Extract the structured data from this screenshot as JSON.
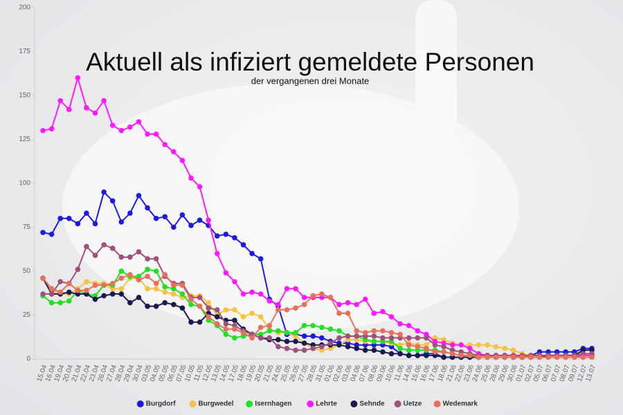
{
  "chart_data": {
    "type": "line",
    "title": "Aktuell als infiziert gemeldete Personen",
    "subtitle": "der vergangenen drei Monate",
    "categories": [
      "15.04",
      "16.04",
      "19.04",
      "20.04",
      "21.04",
      "22.04",
      "23.04",
      "26.04",
      "27.04",
      "28.04",
      "29.04",
      "30.04",
      "03.05",
      "04.05",
      "05.05",
      "06.05",
      "07.05",
      "10.05",
      "11.05",
      "12.05",
      "13.05",
      "14.05",
      "17.05",
      "18.05",
      "19.05",
      "20.05",
      "21.05",
      "24.05",
      "25.05",
      "26.05",
      "27.05",
      "28.05",
      "31.05",
      "01.06",
      "02.06",
      "03.06",
      "04.06",
      "07.06",
      "08.06",
      "09.06",
      "10.06",
      "11.06",
      "14.06",
      "15.06",
      "16.06",
      "17.06",
      "18.06",
      "21.06",
      "22.06",
      "23.06",
      "24.06",
      "25.06",
      "28.06",
      "29.06",
      "30.06",
      "01.07",
      "02.07",
      "05.07",
      "06.07",
      "07.07",
      "08.07",
      "09.07",
      "12.07",
      "13.07"
    ],
    "ylim": [
      0,
      200
    ],
    "yticks": [
      0,
      25,
      50,
      75,
      100,
      125,
      150,
      175,
      200
    ],
    "grid": false,
    "series": [
      {
        "name": "Burgdorf",
        "color": "#1c1ce0",
        "values": [
          72,
          71,
          80,
          80,
          77,
          83,
          77,
          95,
          90,
          78,
          83,
          93,
          86,
          80,
          81,
          75,
          82,
          76,
          79,
          76,
          70,
          71,
          69,
          65,
          60,
          57,
          34,
          30,
          14,
          14,
          13,
          13,
          12,
          10,
          9,
          9,
          8,
          8,
          8,
          8,
          7,
          3,
          2,
          2,
          3,
          3,
          1,
          1,
          1,
          1,
          1,
          1,
          1,
          1,
          1,
          1,
          2,
          4,
          4,
          4,
          4,
          4,
          6,
          6
        ]
      },
      {
        "name": "Burgwedel",
        "color": "#f5c242",
        "values": [
          46,
          39,
          37,
          37,
          40,
          44,
          43,
          43,
          40,
          40,
          46,
          46,
          40,
          40,
          38,
          37,
          35,
          36,
          36,
          32,
          25,
          28,
          28,
          24,
          26,
          24,
          17,
          15,
          15,
          13,
          9,
          6,
          5,
          6,
          8,
          11,
          11,
          10,
          10,
          10,
          9,
          8,
          9,
          8,
          8,
          12,
          11,
          9,
          8,
          8,
          8,
          8,
          7,
          6,
          5,
          3,
          2,
          2,
          2,
          2,
          2,
          2,
          1,
          1
        ]
      },
      {
        "name": "Isernhagen",
        "color": "#22e022",
        "values": [
          36,
          32,
          32,
          33,
          39,
          37,
          36,
          42,
          42,
          50,
          47,
          47,
          51,
          50,
          41,
          40,
          37,
          31,
          30,
          22,
          19,
          14,
          12,
          13,
          14,
          14,
          16,
          16,
          15,
          15,
          19,
          19,
          18,
          17,
          16,
          13,
          13,
          11,
          10,
          10,
          10,
          6,
          5,
          5,
          5,
          5,
          4,
          3,
          2,
          2,
          2,
          2,
          1,
          1,
          1,
          1,
          2,
          2,
          2,
          2,
          2,
          2,
          2,
          2
        ]
      },
      {
        "name": "Lehrte",
        "color": "#ff1aff",
        "values": [
          130,
          131,
          147,
          142,
          160,
          143,
          140,
          147,
          133,
          130,
          132,
          135,
          128,
          128,
          122,
          118,
          113,
          103,
          98,
          79,
          60,
          49,
          44,
          37,
          38,
          37,
          33,
          31,
          40,
          40,
          35,
          35,
          35,
          35,
          31,
          32,
          31,
          34,
          26,
          27,
          24,
          20,
          19,
          16,
          14,
          10,
          9,
          8,
          8,
          6,
          3,
          2,
          2,
          2,
          2,
          1,
          1,
          1,
          1,
          1,
          1,
          1,
          2,
          2
        ]
      },
      {
        "name": "Sehnde",
        "color": "#1a1a50",
        "values": [
          46,
          37,
          37,
          38,
          37,
          37,
          34,
          36,
          37,
          37,
          32,
          35,
          30,
          30,
          32,
          31,
          29,
          21,
          21,
          26,
          24,
          22,
          22,
          17,
          14,
          12,
          11,
          11,
          10,
          10,
          9,
          8,
          8,
          8,
          8,
          7,
          6,
          5,
          5,
          4,
          3,
          3,
          2,
          2,
          2,
          2,
          1,
          1,
          1,
          1,
          1,
          1,
          1,
          1,
          1,
          1,
          1,
          1,
          2,
          2,
          2,
          2,
          5,
          5
        ]
      },
      {
        "name": "Uetze",
        "color": "#a0507a",
        "values": [
          37,
          37,
          44,
          43,
          51,
          64,
          59,
          65,
          63,
          58,
          58,
          61,
          57,
          57,
          47,
          43,
          43,
          35,
          35,
          29,
          28,
          20,
          19,
          16,
          14,
          12,
          12,
          7,
          6,
          5,
          5,
          6,
          7,
          9,
          12,
          13,
          13,
          13,
          13,
          12,
          12,
          12,
          12,
          12,
          12,
          8,
          7,
          5,
          4,
          3,
          2,
          2,
          2,
          2,
          2,
          2,
          2,
          2,
          2,
          2,
          2,
          2,
          3,
          3
        ]
      },
      {
        "name": "Wedemark",
        "color": "#e8705a",
        "values": [
          46,
          40,
          38,
          43,
          39,
          39,
          42,
          42,
          43,
          46,
          48,
          45,
          47,
          43,
          48,
          42,
          42,
          34,
          30,
          24,
          20,
          17,
          17,
          15,
          12,
          18,
          19,
          28,
          28,
          29,
          31,
          36,
          37,
          35,
          26,
          26,
          16,
          15,
          16,
          16,
          15,
          14,
          8,
          7,
          6,
          4,
          4,
          3,
          2,
          2,
          1,
          1,
          1,
          1,
          1,
          1,
          1,
          1,
          1,
          1,
          1,
          1,
          1,
          1
        ]
      }
    ]
  }
}
